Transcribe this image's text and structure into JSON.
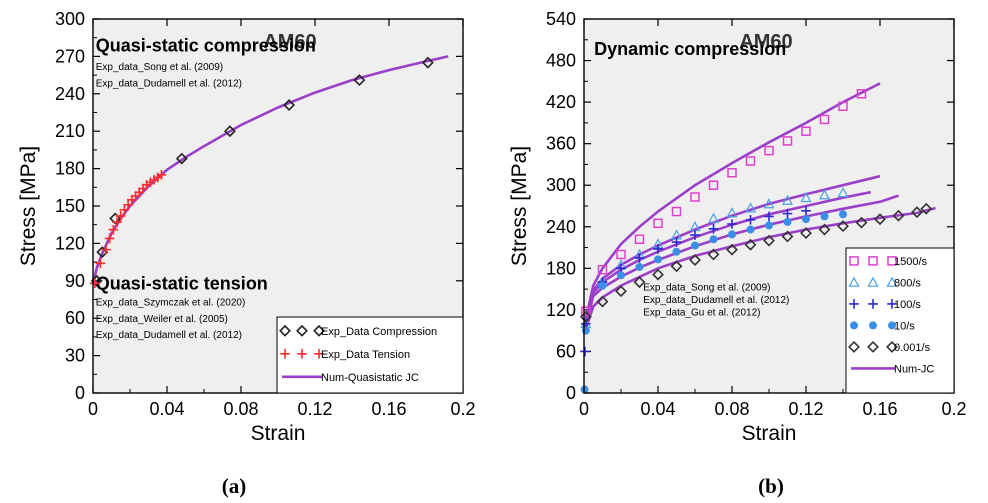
{
  "panels": [
    {
      "caption": "(a)",
      "title": "AM60",
      "labels": [
        {
          "text": "Quasi-static compression",
          "x": 0.0015,
          "y": 274
        },
        {
          "text": "Quasi-static tension",
          "x": 0.0015,
          "y": 83
        }
      ],
      "refs": [
        {
          "text": "Exp_data_Song et al. (2009)",
          "x": 0.0015,
          "y": 259
        },
        {
          "text": "Exp_data_Dudamell et al. (2012)",
          "x": 0.0015,
          "y": 246
        },
        {
          "text": "Exp_data_Szymczak et al. (2020)",
          "x": 0.0015,
          "y": 70
        },
        {
          "text": "Exp_data_Weiler et al. (2005)",
          "x": 0.0015,
          "y": 57
        },
        {
          "text": "Exp_data_Dudamell et al. (2012)",
          "x": 0.0015,
          "y": 44
        }
      ],
      "chart_data": {
        "type": "scatter",
        "title": "AM60",
        "xlabel": "Strain",
        "ylabel": "Stress [MPa]",
        "xlim": [
          0,
          0.2
        ],
        "ylim": [
          0,
          300
        ],
        "xticks": [
          "0",
          "0.04",
          "0.08",
          "0.12",
          "0.16",
          "0.2"
        ],
        "yticks": [
          "0",
          "30",
          "60",
          "90",
          "120",
          "150",
          "180",
          "210",
          "240",
          "270",
          "300"
        ],
        "legend": "bottom-right",
        "series": [
          {
            "name": "Exp_Data Compression",
            "kind": "markers",
            "marker": "diamond",
            "color": "#222222",
            "x": [
              0.002,
              0.005,
              0.012,
              0.048,
              0.074,
              0.106,
              0.144,
              0.181
            ],
            "y": [
              90,
              113,
              140,
              188,
              210,
              231,
              251,
              265
            ]
          },
          {
            "name": "Exp_Data Tension",
            "kind": "markers",
            "marker": "plus",
            "color": "#ff2a2a",
            "x": [
              0.001,
              0.004,
              0.007,
              0.009,
              0.011,
              0.013,
              0.015,
              0.017,
              0.019,
              0.021,
              0.023,
              0.025,
              0.027,
              0.029,
              0.031,
              0.033,
              0.035,
              0.037
            ],
            "y": [
              88,
              104,
              115,
              124,
              131,
              137,
              142,
              147,
              151,
              155,
              158,
              161,
              164,
              167,
              169,
              171,
              173,
              175
            ]
          },
          {
            "name": "Num-Quasistatic JC",
            "kind": "line",
            "color": "#9b3fc9",
            "x": [
              0.0,
              0.002,
              0.005,
              0.01,
              0.015,
              0.02,
              0.03,
              0.04,
              0.05,
              0.06,
              0.08,
              0.1,
              0.12,
              0.14,
              0.16,
              0.18,
              0.192
            ],
            "y": [
              87,
              100,
              112,
              128,
              140,
              150,
              166,
              179,
              189,
              198,
              215,
              229,
              241,
              251,
              259,
              266,
              270
            ]
          }
        ]
      }
    },
    {
      "caption": "(b)",
      "title": "AM60",
      "labels": [
        {
          "text": "Dynamic compression",
          "x": 0.0055,
          "y": 488
        }
      ],
      "refs": [
        {
          "text": "Exp_data_Song et al. (2009)",
          "x": 0.032,
          "y": 148
        },
        {
          "text": "Exp_data_Dudamell et al. (2012)",
          "x": 0.032,
          "y": 130
        },
        {
          "text": "Exp_data_Gu et al. (2012)",
          "x": 0.032,
          "y": 112
        }
      ],
      "chart_data": {
        "type": "scatter",
        "title": "AM60",
        "xlabel": "Strain",
        "ylabel": "Stress [MPa]",
        "xlim": [
          0,
          0.2
        ],
        "ylim": [
          0,
          540
        ],
        "xticks": [
          "0",
          "0.04",
          "0.08",
          "0.12",
          "0.16",
          "0.2"
        ],
        "yticks": [
          "0",
          "60",
          "120",
          "180",
          "240",
          "300",
          "360",
          "420",
          "480",
          "540"
        ],
        "legend": "bottom-right",
        "series": [
          {
            "name": "1500/s",
            "kind": "markers",
            "marker": "square",
            "color": "#e040d0",
            "x": [
              0.001,
              0.01,
              0.02,
              0.03,
              0.04,
              0.05,
              0.06,
              0.07,
              0.08,
              0.09,
              0.1,
              0.11,
              0.12,
              0.13,
              0.14,
              0.15
            ],
            "y": [
              118,
              178,
              200,
              222,
              245,
              262,
              283,
              300,
              318,
              335,
              350,
              364,
              378,
              395,
              414,
              432
            ]
          },
          {
            "name": "800/s",
            "kind": "markers",
            "marker": "triangle",
            "color": "#4aa0e6",
            "x": [
              0.001,
              0.01,
              0.02,
              0.03,
              0.04,
              0.05,
              0.06,
              0.07,
              0.08,
              0.09,
              0.1,
              0.11,
              0.12,
              0.13,
              0.14
            ],
            "y": [
              100,
              160,
              185,
              200,
              215,
              228,
              240,
              252,
              260,
              267,
              273,
              278,
              282,
              286,
              289
            ]
          },
          {
            "name": "100/s",
            "kind": "markers",
            "marker": "plus",
            "color": "#2a2ad0",
            "x": [
              0.0005,
              0.001,
              0.01,
              0.02,
              0.03,
              0.04,
              0.05,
              0.06,
              0.07,
              0.08,
              0.09,
              0.1,
              0.11,
              0.12
            ],
            "y": [
              60,
              100,
              160,
              180,
              195,
              208,
              218,
              228,
              237,
              244,
              250,
              255,
              259,
              263
            ]
          },
          {
            "name": "10/s",
            "kind": "markers",
            "marker": "circle",
            "color": "#3a8ee6",
            "x": [
              0.0003,
              0.001,
              0.01,
              0.02,
              0.03,
              0.04,
              0.05,
              0.06,
              0.07,
              0.08,
              0.09,
              0.1,
              0.11,
              0.12,
              0.13,
              0.14
            ],
            "y": [
              5,
              90,
              155,
              170,
              182,
              193,
              204,
              213,
              222,
              229,
              236,
              242,
              247,
              251,
              255,
              258
            ]
          },
          {
            "name": "0.001/s",
            "kind": "markers",
            "marker": "diamond",
            "color": "#333333",
            "x": [
              0.001,
              0.01,
              0.02,
              0.03,
              0.04,
              0.05,
              0.06,
              0.07,
              0.08,
              0.09,
              0.1,
              0.11,
              0.12,
              0.13,
              0.14,
              0.15,
              0.16,
              0.17,
              0.18,
              0.185
            ],
            "y": [
              110,
              132,
              147,
              160,
              171,
              183,
              192,
              200,
              207,
              214,
              220,
              226,
              231,
              236,
              241,
              246,
              251,
              256,
              261,
              266
            ]
          },
          {
            "name": "Num-JC",
            "kind": "lines",
            "color": "#9b3fc9",
            "lines": [
              {
                "x": [
                  0.0,
                  0.005,
                  0.01,
                  0.02,
                  0.03,
                  0.04,
                  0.06,
                  0.08,
                  0.1,
                  0.12,
                  0.14,
                  0.16
                ],
                "y": [
                  95,
                  155,
                  180,
                  215,
                  240,
                  262,
                  300,
                  332,
                  362,
                  390,
                  420,
                  447
                ]
              },
              {
                "x": [
                  0.0,
                  0.005,
                  0.01,
                  0.02,
                  0.03,
                  0.04,
                  0.06,
                  0.08,
                  0.1,
                  0.12,
                  0.14,
                  0.16
                ],
                "y": [
                  92,
                  148,
                  165,
                  185,
                  200,
                  213,
                  236,
                  256,
                  273,
                  287,
                  300,
                  313
                ]
              },
              {
                "x": [
                  0.0,
                  0.005,
                  0.01,
                  0.02,
                  0.03,
                  0.04,
                  0.06,
                  0.08,
                  0.1,
                  0.12,
                  0.14,
                  0.155
                ],
                "y": [
                  90,
                  145,
                  160,
                  178,
                  192,
                  204,
                  225,
                  243,
                  258,
                  270,
                  282,
                  290
                ]
              },
              {
                "x": [
                  0.0,
                  0.005,
                  0.01,
                  0.02,
                  0.03,
                  0.04,
                  0.06,
                  0.08,
                  0.1,
                  0.12,
                  0.14,
                  0.16,
                  0.17
                ],
                "y": [
                  88,
                  140,
                  152,
                  168,
                  181,
                  192,
                  212,
                  229,
                  243,
                  255,
                  266,
                  276,
                  285
                ]
              },
              {
                "x": [
                  0.0,
                  0.005,
                  0.01,
                  0.02,
                  0.04,
                  0.06,
                  0.08,
                  0.1,
                  0.12,
                  0.14,
                  0.16,
                  0.18,
                  0.19
                ],
                "y": [
                  85,
                  125,
                  138,
                  155,
                  180,
                  198,
                  212,
                  225,
                  236,
                  245,
                  253,
                  260,
                  267
                ]
              }
            ]
          }
        ]
      }
    }
  ]
}
